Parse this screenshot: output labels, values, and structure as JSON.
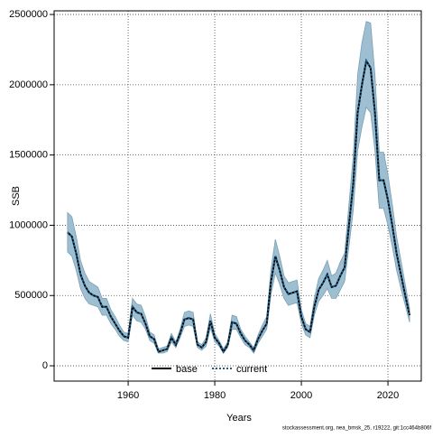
{
  "chart_data": {
    "type": "line",
    "xlabel": "Years",
    "ylabel": "SSB",
    "footnote": "stockassessment.org, nea_bmsk_25, r19222, git:1cc464b806f",
    "x": [
      1946,
      1947,
      1948,
      1949,
      1950,
      1951,
      1952,
      1953,
      1954,
      1955,
      1956,
      1957,
      1958,
      1959,
      1960,
      1961,
      1962,
      1963,
      1964,
      1965,
      1966,
      1967,
      1968,
      1969,
      1970,
      1971,
      1972,
      1973,
      1974,
      1975,
      1976,
      1977,
      1978,
      1979,
      1980,
      1981,
      1982,
      1983,
      1984,
      1985,
      1986,
      1987,
      1988,
      1989,
      1990,
      1991,
      1992,
      1993,
      1994,
      1995,
      1996,
      1997,
      1998,
      1999,
      2000,
      2001,
      2002,
      2003,
      2004,
      2005,
      2006,
      2007,
      2008,
      2009,
      2010,
      2011,
      2012,
      2013,
      2014,
      2015,
      2016,
      2017,
      2018,
      2019,
      2020,
      2021,
      2022,
      2023,
      2024,
      2025
    ],
    "series": [
      {
        "name": "base",
        "color": "#000000",
        "dash": "solid",
        "values": [
          950000,
          920000,
          800000,
          650000,
          570000,
          520000,
          500000,
          490000,
          420000,
          420000,
          350000,
          300000,
          250000,
          210000,
          200000,
          420000,
          380000,
          370000,
          300000,
          210000,
          190000,
          100000,
          110000,
          120000,
          200000,
          150000,
          230000,
          330000,
          340000,
          330000,
          150000,
          130000,
          170000,
          320000,
          200000,
          160000,
          100000,
          150000,
          310000,
          300000,
          230000,
          180000,
          150000,
          110000,
          190000,
          250000,
          300000,
          600000,
          780000,
          680000,
          560000,
          510000,
          520000,
          530000,
          350000,
          260000,
          240000,
          420000,
          540000,
          590000,
          650000,
          560000,
          570000,
          640000,
          700000,
          1000000,
          1300000,
          1800000,
          2000000,
          2170000,
          2120000,
          1800000,
          1320000,
          1320000,
          1180000,
          1000000,
          800000,
          650000,
          500000,
          360000
        ]
      },
      {
        "name": "current",
        "color": "#1f5f8b",
        "dash": "dotted",
        "values": [
          950000,
          920000,
          800000,
          650000,
          570000,
          520000,
          500000,
          490000,
          420000,
          420000,
          350000,
          300000,
          250000,
          210000,
          200000,
          420000,
          380000,
          370000,
          300000,
          210000,
          190000,
          100000,
          110000,
          120000,
          200000,
          150000,
          230000,
          330000,
          340000,
          330000,
          150000,
          130000,
          170000,
          320000,
          200000,
          160000,
          100000,
          150000,
          310000,
          300000,
          230000,
          180000,
          150000,
          110000,
          190000,
          250000,
          300000,
          600000,
          780000,
          680000,
          560000,
          510000,
          520000,
          530000,
          350000,
          260000,
          240000,
          420000,
          540000,
          590000,
          650000,
          560000,
          570000,
          640000,
          700000,
          1000000,
          1300000,
          1800000,
          2000000,
          2170000,
          2120000,
          1800000,
          1320000,
          1320000,
          1180000,
          1000000,
          800000,
          650000,
          500000,
          360000
        ]
      }
    ],
    "band": {
      "color": "#9ebfd2",
      "edge": "#7a9fb5",
      "lower": [
        810000,
        780000,
        680000,
        550000,
        480000,
        440000,
        430000,
        420000,
        360000,
        360000,
        300000,
        260000,
        210000,
        180000,
        170000,
        360000,
        320000,
        310000,
        260000,
        180000,
        160000,
        90000,
        90000,
        100000,
        170000,
        130000,
        200000,
        280000,
        290000,
        280000,
        130000,
        110000,
        140000,
        270000,
        170000,
        140000,
        90000,
        130000,
        260000,
        260000,
        200000,
        150000,
        130000,
        90000,
        160000,
        210000,
        260000,
        510000,
        660000,
        580000,
        480000,
        430000,
        440000,
        450000,
        300000,
        220000,
        200000,
        360000,
        460000,
        500000,
        550000,
        480000,
        480000,
        540000,
        600000,
        850000,
        1110000,
        1530000,
        1700000,
        1840000,
        1800000,
        1530000,
        1120000,
        1120000,
        1000000,
        850000,
        680000,
        550000,
        430000,
        310000
      ],
      "upper": [
        1090000,
        1060000,
        920000,
        750000,
        660000,
        600000,
        580000,
        560000,
        480000,
        480000,
        400000,
        350000,
        290000,
        240000,
        230000,
        480000,
        440000,
        430000,
        350000,
        240000,
        220000,
        120000,
        130000,
        140000,
        230000,
        170000,
        260000,
        380000,
        390000,
        380000,
        170000,
        150000,
        200000,
        370000,
        230000,
        180000,
        120000,
        170000,
        360000,
        350000,
        260000,
        210000,
        170000,
        130000,
        220000,
        290000,
        350000,
        690000,
        900000,
        780000,
        640000,
        590000,
        600000,
        610000,
        400000,
        300000,
        280000,
        480000,
        620000,
        680000,
        750000,
        640000,
        660000,
        740000,
        800000,
        1150000,
        1500000,
        2070000,
        2300000,
        2450000,
        2440000,
        2070000,
        1520000,
        1520000,
        1360000,
        1150000,
        920000,
        750000,
        580000,
        410000
      ]
    },
    "xlim": [
      1942.9,
      2027.7
    ],
    "ylim": [
      -109000,
      2526000
    ],
    "xticks": [
      1960,
      1980,
      2000,
      2020
    ],
    "yticks": [
      0,
      500000,
      1000000,
      1500000,
      2000000,
      2500000
    ],
    "grid": true,
    "legend": "bottom"
  }
}
